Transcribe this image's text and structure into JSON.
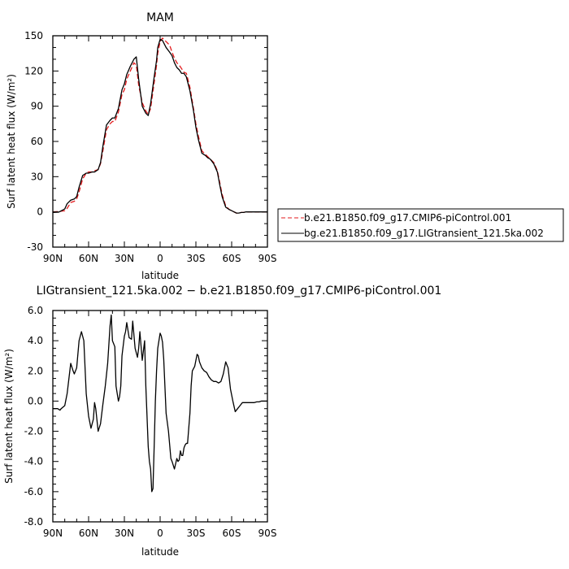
{
  "chart_data": [
    {
      "type": "line",
      "title": "MAM",
      "xlabel": "latitude",
      "ylabel": "Surf latent heat flux (W/m²)",
      "xlim": [
        90,
        -90
      ],
      "ylim": [
        -30,
        150
      ],
      "xticks": [
        90,
        60,
        30,
        0,
        -30,
        -60,
        -90
      ],
      "xtick_labels": [
        "90N",
        "60N",
        "30N",
        "0",
        "30S",
        "60S",
        "90S"
      ],
      "yticks": [
        -30,
        0,
        30,
        60,
        90,
        120,
        150
      ],
      "ytick_labels": [
        "-30",
        "0",
        "30",
        "60",
        "90",
        "120",
        "150"
      ],
      "grid": false,
      "legend_position": "right",
      "x": [
        90,
        85,
        80,
        78,
        75,
        72,
        70,
        68,
        65,
        62,
        60,
        57,
        55,
        52,
        50,
        48,
        45,
        42,
        40,
        38,
        35,
        32,
        30,
        28,
        25,
        22,
        20,
        18,
        15,
        12,
        10,
        8,
        5,
        3,
        2,
        0,
        -2,
        -5,
        -8,
        -10,
        -12,
        -14,
        -16,
        -18,
        -20,
        -22,
        -25,
        -28,
        -30,
        -32,
        -35,
        -38,
        -40,
        -42,
        -45,
        -48,
        -50,
        -52,
        -55,
        -58,
        -60,
        -62,
        -64,
        -66,
        -68,
        -70,
        -72,
        -75,
        -78,
        -80,
        -82,
        -85,
        -88,
        -90
      ],
      "series": [
        {
          "name": "b.e21.B1850.f09_g17.CMIP6-piControl.001",
          "color": "#e31a1c",
          "dashed": true,
          "values": [
            0,
            0.3,
            1,
            3,
            8,
            9,
            11,
            17,
            28,
            33,
            34,
            34,
            35,
            36,
            41,
            52,
            70,
            75,
            77,
            77,
            85,
            100,
            104,
            113,
            120,
            127,
            125,
            108,
            93,
            86,
            83,
            88,
            110,
            125,
            135,
            145,
            148,
            145,
            142,
            136,
            131,
            127,
            125,
            122,
            119,
            118,
            106,
            88,
            75,
            65,
            52,
            49,
            47,
            45,
            42,
            35,
            25,
            15,
            5,
            2,
            1,
            0,
            -1,
            -1,
            -0.5,
            -0.5,
            0,
            0,
            0,
            0,
            0,
            0,
            0,
            0
          ]
        },
        {
          "name": "bg.e21.B1850.f09_g17.LIGtransient_121.5ka.002",
          "color": "#000000",
          "dashed": false,
          "values": [
            -0.5,
            -0.2,
            2.5,
            7,
            10,
            11,
            13,
            21,
            31,
            33,
            33,
            34,
            34,
            36,
            42,
            56,
            74,
            78,
            80,
            80,
            88,
            104,
            109,
            117,
            124,
            130,
            132,
            113,
            90,
            84,
            82,
            92,
            115,
            129,
            140,
            147,
            146,
            140,
            136,
            133,
            127,
            123,
            121,
            118,
            118,
            115,
            103,
            86,
            72,
            62,
            50,
            48,
            46,
            45,
            41,
            34,
            23,
            13,
            4,
            2,
            1,
            0,
            -1,
            -1,
            -0.5,
            -0.5,
            0,
            0,
            0,
            0,
            0,
            0,
            0,
            0
          ]
        }
      ]
    },
    {
      "type": "line",
      "title": "LIGtransient_121.5ka.002 − b.e21.B1850.f09_g17.CMIP6-piControl.001",
      "xlabel": "latitude",
      "ylabel": "Surf latent heat flux (W/m²)",
      "xlim": [
        90,
        -90
      ],
      "ylim": [
        -8.0,
        6.0
      ],
      "xticks": [
        90,
        60,
        30,
        0,
        -30,
        -60,
        -90
      ],
      "xtick_labels": [
        "90N",
        "60N",
        "30N",
        "0",
        "30S",
        "60S",
        "90S"
      ],
      "yticks": [
        -8.0,
        -6.0,
        -4.0,
        -2.0,
        0.0,
        2.0,
        4.0,
        6.0
      ],
      "ytick_labels": [
        "-8.0",
        "-6.0",
        "-4.0",
        "-2.0",
        "0.0",
        "2.0",
        "4.0",
        "6.0"
      ],
      "grid": false,
      "series": [
        {
          "color": "#000000",
          "x": [
            90,
            86,
            84,
            83,
            80,
            78,
            75,
            73,
            72,
            70,
            68,
            66,
            64,
            62,
            60,
            58,
            56,
            55,
            54,
            52,
            50,
            48,
            46,
            44,
            42,
            41,
            40,
            38,
            37,
            35,
            34,
            33,
            32,
            30,
            29,
            28,
            26,
            24,
            23,
            21,
            19,
            18,
            17,
            15,
            13,
            12,
            11,
            10,
            9,
            8,
            7,
            6,
            5,
            4,
            3,
            2,
            1,
            0,
            -1,
            -2,
            -3,
            -4,
            -5,
            -7,
            -9,
            -10,
            -12,
            -14,
            -15,
            -16,
            -17,
            -18,
            -19,
            -20,
            -21,
            -22,
            -23,
            -24,
            -25,
            -26,
            -27,
            -29,
            -31,
            -32,
            -33,
            -35,
            -37,
            -39,
            -41,
            -43,
            -45,
            -47,
            -49,
            -51,
            -53,
            -55,
            -57,
            -59,
            -61,
            -63,
            -65,
            -67,
            -69,
            -71,
            -73,
            -75,
            -77,
            -79,
            -81,
            -83,
            -85,
            -87,
            -89,
            -90
          ],
          "values": [
            -0.5,
            -0.5,
            -0.6,
            -0.5,
            -0.3,
            0.5,
            2.5,
            2.0,
            1.8,
            2.2,
            4.0,
            4.6,
            4.0,
            0.5,
            -1.0,
            -1.8,
            -1.2,
            -0.1,
            -0.5,
            -2.0,
            -1.5,
            -0.2,
            1.0,
            2.5,
            5.0,
            5.7,
            4.0,
            3.6,
            1.0,
            0.0,
            0.3,
            1.0,
            3.0,
            4.3,
            4.6,
            5.2,
            4.2,
            4.1,
            5.3,
            3.5,
            2.9,
            3.5,
            4.6,
            2.7,
            4.0,
            1.0,
            -1.0,
            -3.0,
            -4.0,
            -4.5,
            -6.0,
            -5.8,
            -3.0,
            0.0,
            2.0,
            3.5,
            4.0,
            4.5,
            4.3,
            3.9,
            2.8,
            1.0,
            -0.8,
            -2.0,
            -3.8,
            -4.0,
            -4.5,
            -3.8,
            -4.0,
            -3.9,
            -3.3,
            -3.6,
            -3.6,
            -3.1,
            -2.9,
            -2.8,
            -2.8,
            -1.8,
            -0.8,
            1.0,
            2.0,
            2.3,
            3.1,
            3.0,
            2.6,
            2.2,
            2.0,
            1.9,
            1.6,
            1.4,
            1.3,
            1.3,
            1.2,
            1.3,
            1.8,
            2.6,
            2.2,
            0.8,
            0.0,
            -0.7,
            -0.5,
            -0.3,
            -0.1,
            -0.1,
            -0.1,
            -0.1,
            -0.1,
            -0.1,
            -0.05,
            -0.05,
            0.0,
            0.0,
            0.0,
            0.0
          ]
        }
      ]
    }
  ]
}
